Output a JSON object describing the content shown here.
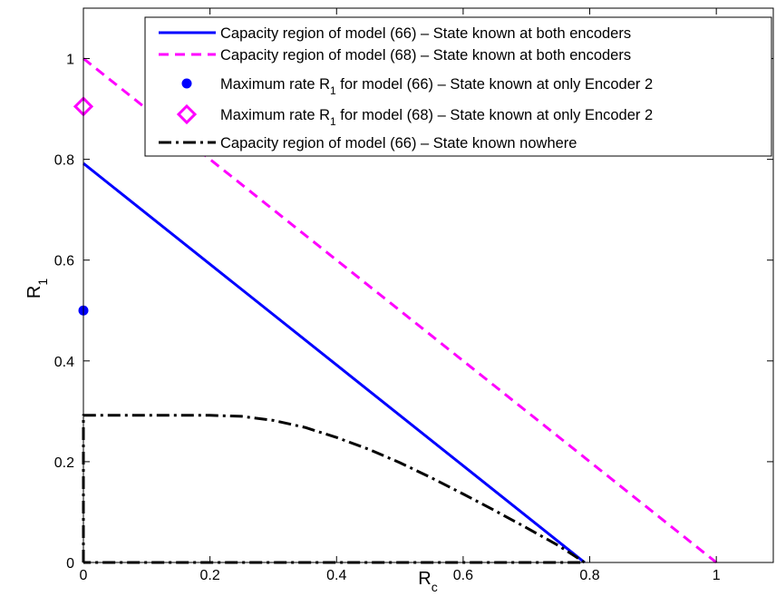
{
  "chart_data": {
    "type": "line",
    "xlabel": "R",
    "xlabel_sub": "c",
    "ylabel": "R",
    "ylabel_sub": "1",
    "xlim": [
      0,
      1.09
    ],
    "ylim": [
      0,
      1.1
    ],
    "x_ticks": [
      0,
      0.2,
      0.4,
      0.6,
      0.8,
      1
    ],
    "x_tick_labels": [
      "0",
      "0.2",
      "0.4",
      "0.6",
      "0.8",
      "1"
    ],
    "y_ticks": [
      0,
      0.2,
      0.4,
      0.6,
      0.8,
      1
    ],
    "y_tick_labels": [
      "0",
      "0.2",
      "0.4",
      "0.6",
      "0.8",
      "1"
    ],
    "grid": false,
    "legend_position": "top-right",
    "series": [
      {
        "name": "Capacity region of model (66) – State known at both encoders",
        "kind": "line",
        "style": "solid",
        "color": "#0000ff",
        "x": [
          0,
          0.792
        ],
        "y": [
          0.792,
          0
        ]
      },
      {
        "name": "Capacity region of model (68) – State known at both encoders",
        "kind": "line",
        "style": "dashed",
        "color": "#ff00ff",
        "x": [
          0,
          1
        ],
        "y": [
          1,
          0
        ]
      },
      {
        "name_parts": [
          "Maximum rate R",
          "1",
          " for model (66) – State known at only Encoder 2"
        ],
        "kind": "marker",
        "marker": "circle",
        "color": "#0000ff",
        "x": [
          0
        ],
        "y": [
          0.5
        ]
      },
      {
        "name_parts": [
          "Maximum rate R",
          "1",
          " for model (68) – State known at only Encoder 2"
        ],
        "kind": "marker",
        "marker": "diamond",
        "color": "#ff00ff",
        "x": [
          0
        ],
        "y": [
          0.905
        ]
      },
      {
        "name": "Capacity region of model (66) – State known nowhere",
        "kind": "line",
        "style": "dashdot",
        "color": "#000000",
        "x": [
          0,
          0,
          0.1,
          0.2,
          0.25,
          0.3,
          0.35,
          0.4,
          0.45,
          0.5,
          0.55,
          0.6,
          0.65,
          0.7,
          0.75,
          0.792,
          0
        ],
        "y": [
          0,
          0.292,
          0.292,
          0.292,
          0.29,
          0.282,
          0.268,
          0.248,
          0.225,
          0.198,
          0.168,
          0.136,
          0.103,
          0.069,
          0.034,
          0,
          0
        ]
      }
    ]
  }
}
